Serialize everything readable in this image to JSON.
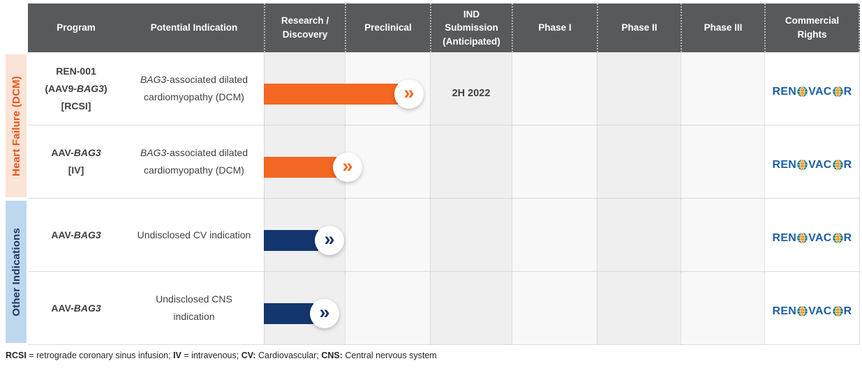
{
  "colors": {
    "header_bg": "#58595B",
    "orange": "#F26722",
    "navy": "#14366E",
    "logo_blue": "#1B5EA6",
    "globe_orange": "#F7941D",
    "globe_green": "#3A9E49",
    "col_tint_a": "#EFEFEF",
    "col_tint_b": "#F8F8F9"
  },
  "header": {
    "columns": [
      "Program",
      "Potential Indication",
      "Research /\nDiscovery",
      "Preclinical",
      "IND\nSubmission\n(Anticipated)",
      "Phase I",
      "Phase II",
      "Phase III",
      "Commercial\nRights"
    ]
  },
  "groups": [
    {
      "label": "Heart Failure (DCM)",
      "bg": "#FBE3D6",
      "color": "#E8541D"
    },
    {
      "label": "Other Indications",
      "bg": "#BDD7EE",
      "color": "#1F3864"
    }
  ],
  "rows": [
    {
      "group": "Heart Failure (DCM)",
      "program_lines": [
        [
          {
            "text": "REN-001"
          }
        ],
        [
          {
            "text": "(AAV9-"
          },
          {
            "text": "BAG3",
            "italic": true
          },
          {
            "text": ")"
          }
        ],
        [
          {
            "text": "[RCSI]"
          }
        ]
      ],
      "indication_lines": [
        [
          {
            "text": "BAG3",
            "italic": true
          },
          {
            "text": "-associated dilated"
          }
        ],
        [
          {
            "text": "cardiomyopathy (DCM)"
          }
        ]
      ],
      "bar": {
        "color": "#F26722",
        "progress_stages": 1.63
      },
      "milestone": "2H 2022",
      "commercial_rights": "Renovacor"
    },
    {
      "group": "Heart Failure (DCM)",
      "program_lines": [
        [
          {
            "text": "AAV-"
          },
          {
            "text": "BAG3",
            "italic": true
          }
        ],
        [
          {
            "text": "[IV]"
          }
        ]
      ],
      "indication_lines": [
        [
          {
            "text": "BAG3",
            "italic": true
          },
          {
            "text": "-associated dilated"
          }
        ],
        [
          {
            "text": "cardiomyopathy (DCM)"
          }
        ]
      ],
      "bar": {
        "color": "#F26722",
        "progress_stages": 0.88
      },
      "milestone": "",
      "commercial_rights": "Renovacor"
    },
    {
      "group": "Other Indications",
      "program_lines": [
        [
          {
            "text": "AAV-"
          },
          {
            "text": "BAG3",
            "italic": true
          }
        ]
      ],
      "indication_lines": [
        [
          {
            "text": "Undisclosed CV indication"
          }
        ]
      ],
      "bar": {
        "color": "#14366E",
        "progress_stages": 0.66
      },
      "milestone": "",
      "commercial_rights": "Renovacor"
    },
    {
      "group": "Other Indications",
      "program_lines": [
        [
          {
            "text": "AAV-"
          },
          {
            "text": "BAG3",
            "italic": true
          }
        ]
      ],
      "indication_lines": [
        [
          {
            "text": "Undisclosed CNS"
          }
        ],
        [
          {
            "text": "indication"
          }
        ]
      ],
      "bar": {
        "color": "#14366E",
        "progress_stages": 0.6
      },
      "milestone": "",
      "commercial_rights": "Renovacor"
    }
  ],
  "logo": {
    "name": "Renovacor",
    "parts": [
      {
        "type": "text",
        "value": "REN"
      },
      {
        "type": "globe"
      },
      {
        "type": "text",
        "value": "VAC"
      },
      {
        "type": "globe"
      },
      {
        "type": "text",
        "value": "R"
      }
    ]
  },
  "footer": {
    "segments": [
      {
        "text": "RCSI",
        "bold": true
      },
      {
        "text": " = retrograde coronary sinus infusion; "
      },
      {
        "text": "IV",
        "bold": true
      },
      {
        "text": " = intravenous; "
      },
      {
        "text": "CV:",
        "bold": true
      },
      {
        "text": " Cardiovascular; "
      },
      {
        "text": "CNS:",
        "bold": true
      },
      {
        "text": " Central nervous system"
      }
    ]
  },
  "chart_data": {
    "type": "bar",
    "subtype": "clinical-pipeline-progress",
    "orientation": "horizontal",
    "stage_axis": [
      "Research / Discovery",
      "Preclinical",
      "IND Submission (Anticipated)",
      "Phase I",
      "Phase II",
      "Phase III"
    ],
    "series": [
      {
        "group": "Heart Failure (DCM)",
        "name": "REN-001 (AAV9-BAG3) [RCSI]",
        "indication": "BAG3-associated dilated cardiomyopathy (DCM)",
        "progress_stages": 1.63,
        "stage_reached": "Preclinical",
        "ind_submission_anticipated": "2H 2022",
        "color": "#F26722",
        "commercial_rights": "Renovacor"
      },
      {
        "group": "Heart Failure (DCM)",
        "name": "AAV-BAG3 [IV]",
        "indication": "BAG3-associated dilated cardiomyopathy (DCM)",
        "progress_stages": 0.88,
        "stage_reached": "Research / Discovery → Preclinical boundary",
        "color": "#F26722",
        "commercial_rights": "Renovacor"
      },
      {
        "group": "Other Indications",
        "name": "AAV-BAG3",
        "indication": "Undisclosed CV indication",
        "progress_stages": 0.66,
        "stage_reached": "Research / Discovery",
        "color": "#14366E",
        "commercial_rights": "Renovacor"
      },
      {
        "group": "Other Indications",
        "name": "AAV-BAG3",
        "indication": "Undisclosed CNS indication",
        "progress_stages": 0.6,
        "stage_reached": "Research / Discovery",
        "color": "#14366E",
        "commercial_rights": "Renovacor"
      }
    ],
    "legend": "none",
    "gridlines": "dotted-column-separators"
  }
}
